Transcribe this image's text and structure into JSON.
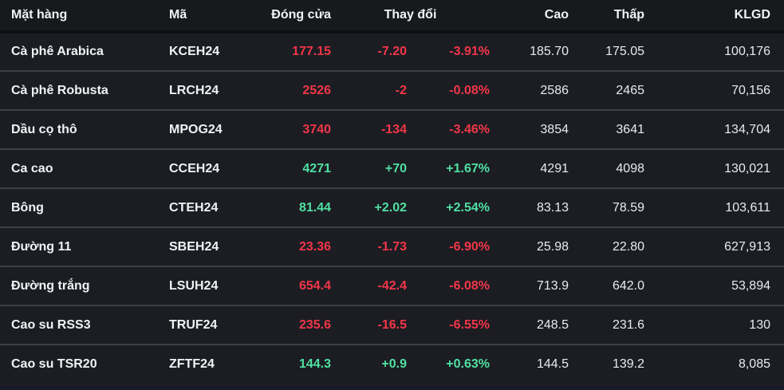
{
  "colors": {
    "up": "#50e0a2",
    "down": "#f23648",
    "text": "#f1f2f4",
    "header_background": "#17191d",
    "row_background": "#1b1d23",
    "row_separator": "#3b4049"
  },
  "table": {
    "headers": {
      "commodity": "Mặt hàng",
      "code": "Mã",
      "close": "Đóng cửa",
      "change": "Thay đổi",
      "high": "Cao",
      "low": "Thấp",
      "volume": "KLGD"
    },
    "rows": [
      {
        "name": "Cà phê Arabica",
        "code": "KCEH24",
        "close": "177.15",
        "change": "-7.20",
        "change_pct": "-3.91%",
        "high": "185.70",
        "low": "175.05",
        "volume": "100,176",
        "direction": "down"
      },
      {
        "name": "Cà phê Robusta",
        "code": "LRCH24",
        "close": "2526",
        "change": "-2",
        "change_pct": "-0.08%",
        "high": "2586",
        "low": "2465",
        "volume": "70,156",
        "direction": "down"
      },
      {
        "name": "Dầu cọ thô",
        "code": "MPOG24",
        "close": "3740",
        "change": "-134",
        "change_pct": "-3.46%",
        "high": "3854",
        "low": "3641",
        "volume": "134,704",
        "direction": "down"
      },
      {
        "name": "Ca cao",
        "code": "CCEH24",
        "close": "4271",
        "change": "+70",
        "change_pct": "+1.67%",
        "high": "4291",
        "low": "4098",
        "volume": "130,021",
        "direction": "up"
      },
      {
        "name": "Bông",
        "code": "CTEH24",
        "close": "81.44",
        "change": "+2.02",
        "change_pct": "+2.54%",
        "high": "83.13",
        "low": "78.59",
        "volume": "103,611",
        "direction": "up"
      },
      {
        "name": "Đường 11",
        "code": "SBEH24",
        "close": "23.36",
        "change": "-1.73",
        "change_pct": "-6.90%",
        "high": "25.98",
        "low": "22.80",
        "volume": "627,913",
        "direction": "down"
      },
      {
        "name": "Đường trắng",
        "code": "LSUH24",
        "close": "654.4",
        "change": "-42.4",
        "change_pct": "-6.08%",
        "high": "713.9",
        "low": "642.0",
        "volume": "53,894",
        "direction": "down"
      },
      {
        "name": "Cao su RSS3",
        "code": "TRUF24",
        "close": "235.6",
        "change": "-16.5",
        "change_pct": "-6.55%",
        "high": "248.5",
        "low": "231.6",
        "volume": "130",
        "direction": "down"
      },
      {
        "name": "Cao su TSR20",
        "code": "ZFTF24",
        "close": "144.3",
        "change": "+0.9",
        "change_pct": "+0.63%",
        "high": "144.5",
        "low": "139.2",
        "volume": "8,085",
        "direction": "up"
      }
    ]
  }
}
